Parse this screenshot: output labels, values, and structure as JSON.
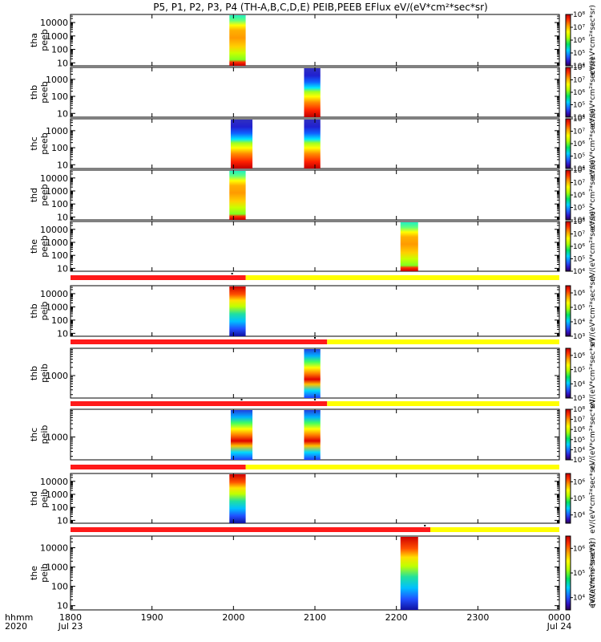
{
  "title": "P5, P1, P2, P3, P4 (TH-A,B,C,D,E) PEIB,PEEB EFlux eV/(eV*cm²*sec*sr)",
  "colorbar_unit_label": "eV/(eV*cm²*sec*sr)",
  "bottom_colorbar_unit_label": "[eV/(cm²-s-sr-eV)]",
  "x_axis": {
    "corner_label_1": "hhmm",
    "corner_label_2": "2020",
    "tick_labels": [
      "1800",
      "1900",
      "2000",
      "2100",
      "2200",
      "2300",
      "0000"
    ],
    "date_labels": [
      "Jul 23",
      "Jul 24"
    ]
  },
  "chart_data": {
    "type": "heatmap",
    "x_range": [
      "2020-07-23 18:00",
      "2020-07-24 00:00"
    ],
    "y_scale": "log",
    "panels": [
      {
        "probe": "tha",
        "label": [
          "tha",
          "peeb"
        ],
        "yticks": [
          "10",
          "100",
          "1000",
          "10000"
        ],
        "ylim": [
          6,
          40000
        ],
        "blocks": [
          {
            "start": "19:57",
            "end": "20:09",
            "profile": "electron_high"
          }
        ],
        "cbar_ticks": [
          "10⁴",
          "10⁵",
          "10⁶",
          "10⁷",
          "10⁸"
        ],
        "cbar_exp": [
          4,
          8
        ]
      },
      {
        "probe": "thb",
        "label": [
          "thb",
          "peeb"
        ],
        "yticks": [
          "10",
          "100",
          "1000"
        ],
        "ylim": [
          6,
          5000
        ],
        "blocks": [
          {
            "start": "20:52",
            "end": "21:04",
            "profile": "electron_low"
          }
        ],
        "cbar_ticks": [
          "10⁴",
          "10⁵",
          "10⁶",
          "10⁷",
          "10⁸"
        ],
        "cbar_exp": [
          4,
          8
        ]
      },
      {
        "probe": "thc",
        "label": [
          "thc",
          "peeb"
        ],
        "yticks": [
          "10",
          "100",
          "1000"
        ],
        "ylim": [
          6,
          5000
        ],
        "blocks": [
          {
            "start": "19:58",
            "end": "20:14",
            "profile": "electron_low"
          },
          {
            "start": "20:52",
            "end": "21:04",
            "profile": "electron_low"
          }
        ],
        "cbar_ticks": [
          "10⁴",
          "10⁵",
          "10⁶",
          "10⁷",
          "10⁸"
        ],
        "cbar_exp": [
          4,
          8
        ]
      },
      {
        "probe": "thd",
        "label": [
          "thd",
          "peeb"
        ],
        "yticks": [
          "10",
          "100",
          "1000",
          "10000"
        ],
        "ylim": [
          6,
          40000
        ],
        "blocks": [
          {
            "start": "19:57",
            "end": "20:09",
            "profile": "electron_high"
          }
        ],
        "cbar_ticks": [
          "10⁴",
          "10⁵",
          "10⁶",
          "10⁷",
          "10⁸"
        ],
        "cbar_exp": [
          4,
          8
        ]
      },
      {
        "probe": "the",
        "label": [
          "the",
          "peeb"
        ],
        "yticks": [
          "10",
          "100",
          "1000",
          "10000"
        ],
        "ylim": [
          6,
          40000
        ],
        "blocks": [
          {
            "start": "22:03",
            "end": "22:16",
            "profile": "electron_high"
          }
        ],
        "cbar_ticks": [
          "10⁴",
          "10⁵",
          "10⁶",
          "10⁷",
          "10⁸"
        ],
        "cbar_exp": [
          4,
          8
        ]
      },
      {
        "probe": "thb",
        "label": [
          "thb",
          "peib"
        ],
        "yticks": [
          "10",
          "100",
          "1000",
          "10000"
        ],
        "ylim": [
          6,
          40000
        ],
        "blocks": [
          {
            "start": "19:57",
            "end": "20:09",
            "profile": "ion_high"
          }
        ],
        "cbar_ticks": [
          "10³",
          "10⁴",
          "10⁵",
          "10⁶"
        ],
        "cbar_exp": [
          3,
          6.5
        ],
        "status_bar": {
          "red_end": "20:09",
          "markers": [
            "19:59"
          ]
        }
      },
      {
        "probe": "thb",
        "label": [
          "thb",
          "peib"
        ],
        "yticks": [
          "1000"
        ],
        "ylim": [
          150,
          10000
        ],
        "blocks": [
          {
            "start": "20:52",
            "end": "21:04",
            "profile": "ion_mid"
          }
        ],
        "cbar_ticks": [
          "10³",
          "10⁴",
          "10⁵",
          "10⁶"
        ],
        "cbar_exp": [
          3,
          6.5
        ],
        "status_bar": {
          "red_end": "21:09",
          "markers": [
            "21:00"
          ]
        }
      },
      {
        "probe": "thc",
        "label": [
          "thc",
          "peib"
        ],
        "yticks": [
          "1000"
        ],
        "ylim": [
          150,
          10000
        ],
        "blocks": [
          {
            "start": "19:58",
            "end": "20:14",
            "profile": "ion_mid"
          },
          {
            "start": "20:52",
            "end": "21:04",
            "profile": "ion_mid"
          }
        ],
        "cbar_ticks": [
          "10³",
          "10⁴",
          "10⁵",
          "10⁶",
          "10⁷",
          "10⁸"
        ],
        "cbar_exp": [
          3,
          8
        ],
        "status_bar": {
          "red_end": "21:09",
          "markers": [
            "20:06",
            "21:00"
          ]
        }
      },
      {
        "probe": "thd",
        "label": [
          "thd",
          "peib"
        ],
        "yticks": [
          "10",
          "100",
          "1000",
          "10000"
        ],
        "ylim": [
          6,
          40000
        ],
        "blocks": [
          {
            "start": "19:57",
            "end": "20:09",
            "profile": "ion_high"
          }
        ],
        "cbar_ticks": [
          "10⁴",
          "10⁵",
          "10⁶"
        ],
        "cbar_exp": [
          3.5,
          6.5
        ],
        "status_bar": {
          "red_end": "20:09",
          "markers": []
        }
      },
      {
        "probe": "the",
        "label": [
          "the",
          "peib"
        ],
        "yticks": [
          "10",
          "100",
          "1000",
          "10000"
        ],
        "ylim": [
          6,
          40000
        ],
        "blocks": [
          {
            "start": "22:03",
            "end": "22:16",
            "profile": "ion_high"
          }
        ],
        "cbar_ticks": [
          "10⁴",
          "10⁵",
          "10⁶"
        ],
        "cbar_exp": [
          3.5,
          6.5
        ],
        "status_bar": {
          "red_end": "22:25",
          "markers": [
            "22:21"
          ]
        }
      }
    ]
  }
}
